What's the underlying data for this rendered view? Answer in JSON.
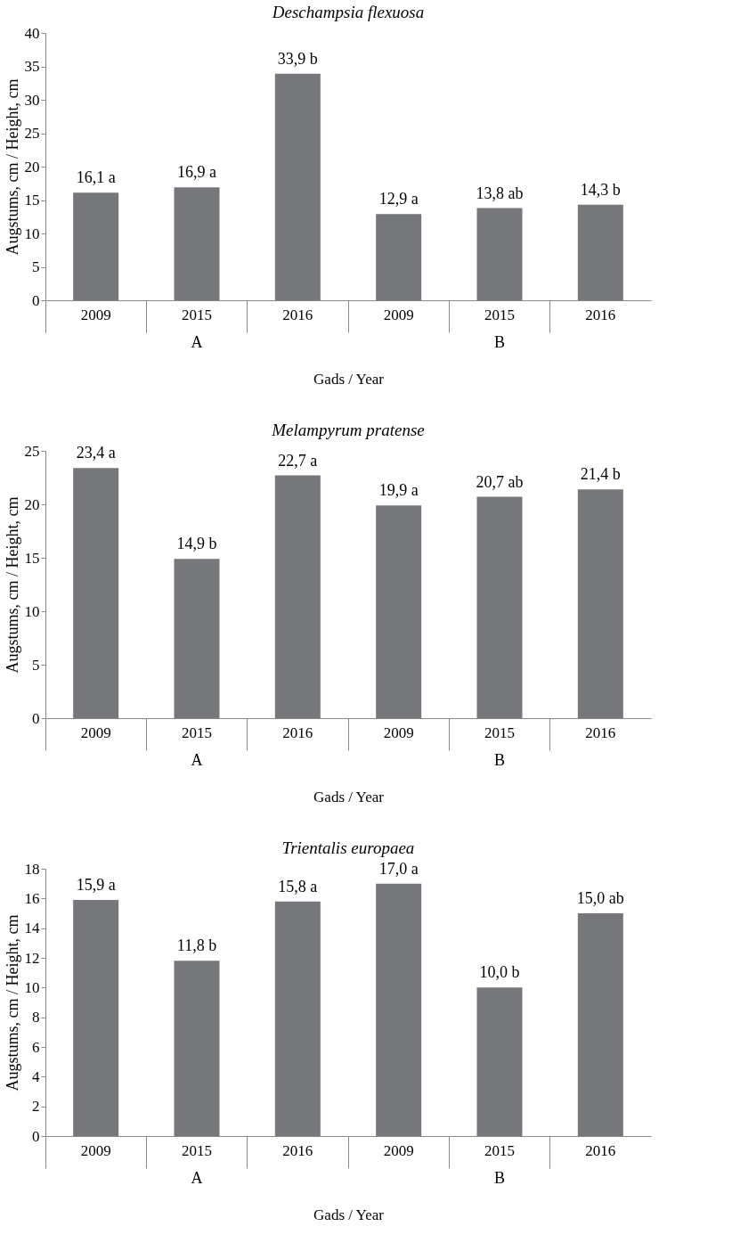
{
  "chart_data": [
    {
      "type": "bar",
      "title": "Deschampsia flexuosa",
      "xlabel": "Gads / Year",
      "ylabel": "Augstums, cm / Height, cm",
      "categories": [
        "2009",
        "2015",
        "2016",
        "2009",
        "2015",
        "2016"
      ],
      "values": [
        16.1,
        16.9,
        33.9,
        12.9,
        13.8,
        14.3
      ],
      "value_labels": [
        "16,1 a",
        "16,9 a",
        "33,9 b",
        "12,9 a",
        "13,8 ab",
        "14,3 b"
      ],
      "color": "#76777b",
      "ylim": [
        0,
        40
      ],
      "yticks": [
        0,
        5,
        10,
        15,
        20,
        25,
        30,
        35,
        40
      ],
      "grid": false,
      "annotations": [
        "A",
        "B"
      ]
    },
    {
      "type": "bar",
      "title": "Melampyrum pratense",
      "xlabel": "Gads / Year",
      "ylabel": "Augstums, cm / Height, cm",
      "categories": [
        "2009",
        "2015",
        "2016",
        "2009",
        "2015",
        "2016"
      ],
      "values": [
        23.4,
        14.9,
        22.7,
        19.9,
        20.7,
        21.4
      ],
      "value_labels": [
        "23,4 a",
        "14,9 b",
        "22,7 a",
        "19,9 a",
        "20,7 ab",
        "21,4 b"
      ],
      "color": "#76777b",
      "ylim": [
        0,
        25
      ],
      "yticks": [
        0,
        5,
        10,
        15,
        20,
        25
      ],
      "grid": false,
      "annotations": [
        "A",
        "B"
      ]
    },
    {
      "type": "bar",
      "title": "Trientalis europaea",
      "xlabel": "Gads / Year",
      "ylabel": "Augstums, cm / Height, cm",
      "categories": [
        "2009",
        "2015",
        "2016",
        "2009",
        "2015",
        "2016"
      ],
      "values": [
        15.9,
        11.8,
        15.8,
        17.0,
        10.0,
        15.0
      ],
      "value_labels": [
        "15,9 a",
        "11,8 b",
        "15,8 a",
        "17,0 a",
        "10,0 b",
        "15,0 ab"
      ],
      "color": "#76777b",
      "ylim": [
        0,
        18
      ],
      "yticks": [
        0,
        2,
        4,
        6,
        8,
        10,
        12,
        14,
        16,
        18
      ],
      "grid": false,
      "annotations": [
        "A",
        "B"
      ]
    }
  ]
}
